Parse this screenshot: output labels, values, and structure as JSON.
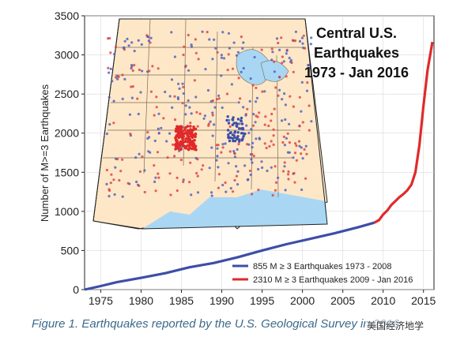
{
  "chart_data": {
    "type": "line",
    "ylabel": "Number of M>=3 Earthquakes",
    "xlabel": "",
    "xlim": [
      1973,
      2016.3
    ],
    "ylim": [
      0,
      3500
    ],
    "x_ticks": [
      1975,
      1980,
      1985,
      1990,
      1995,
      2000,
      2005,
      2010,
      2015
    ],
    "y_ticks": [
      0,
      500,
      1000,
      1500,
      2000,
      2500,
      3000,
      3500
    ],
    "grid": true,
    "legend_position": "bottom-right",
    "series": [
      {
        "name": "855   M ≥ 3 Earthquakes 1973 - 2008",
        "color": "#3d4ea8",
        "x": [
          1973,
          1975,
          1977,
          1980,
          1983,
          1986,
          1989,
          1992,
          1995,
          1998,
          2001,
          2004,
          2007,
          2008.9
        ],
        "y": [
          0,
          45,
          95,
          150,
          210,
          285,
          340,
          415,
          500,
          580,
          650,
          720,
          800,
          855
        ]
      },
      {
        "name": "2310 M ≥ 3 Earthquakes 2009 - Jan 2016",
        "color": "#e02a2a",
        "x": [
          2008.9,
          2009.5,
          2010,
          2010.5,
          2011,
          2011.5,
          2012,
          2012.5,
          2013,
          2013.5,
          2014,
          2014.5,
          2015,
          2015.5,
          2016.1
        ],
        "y": [
          855,
          890,
          960,
          1010,
          1080,
          1130,
          1180,
          1220,
          1270,
          1340,
          1500,
          1850,
          2350,
          2800,
          3165
        ]
      }
    ],
    "inset": {
      "title_lines": [
        "Central U.S.",
        "Earthquakes",
        "1973 - Jan 2016"
      ],
      "map_description_hidden": true
    }
  },
  "caption": "Figure 1. Earthquakes reported by the U.S. Geological Survey in 2016",
  "watermark": "美国经济地学"
}
